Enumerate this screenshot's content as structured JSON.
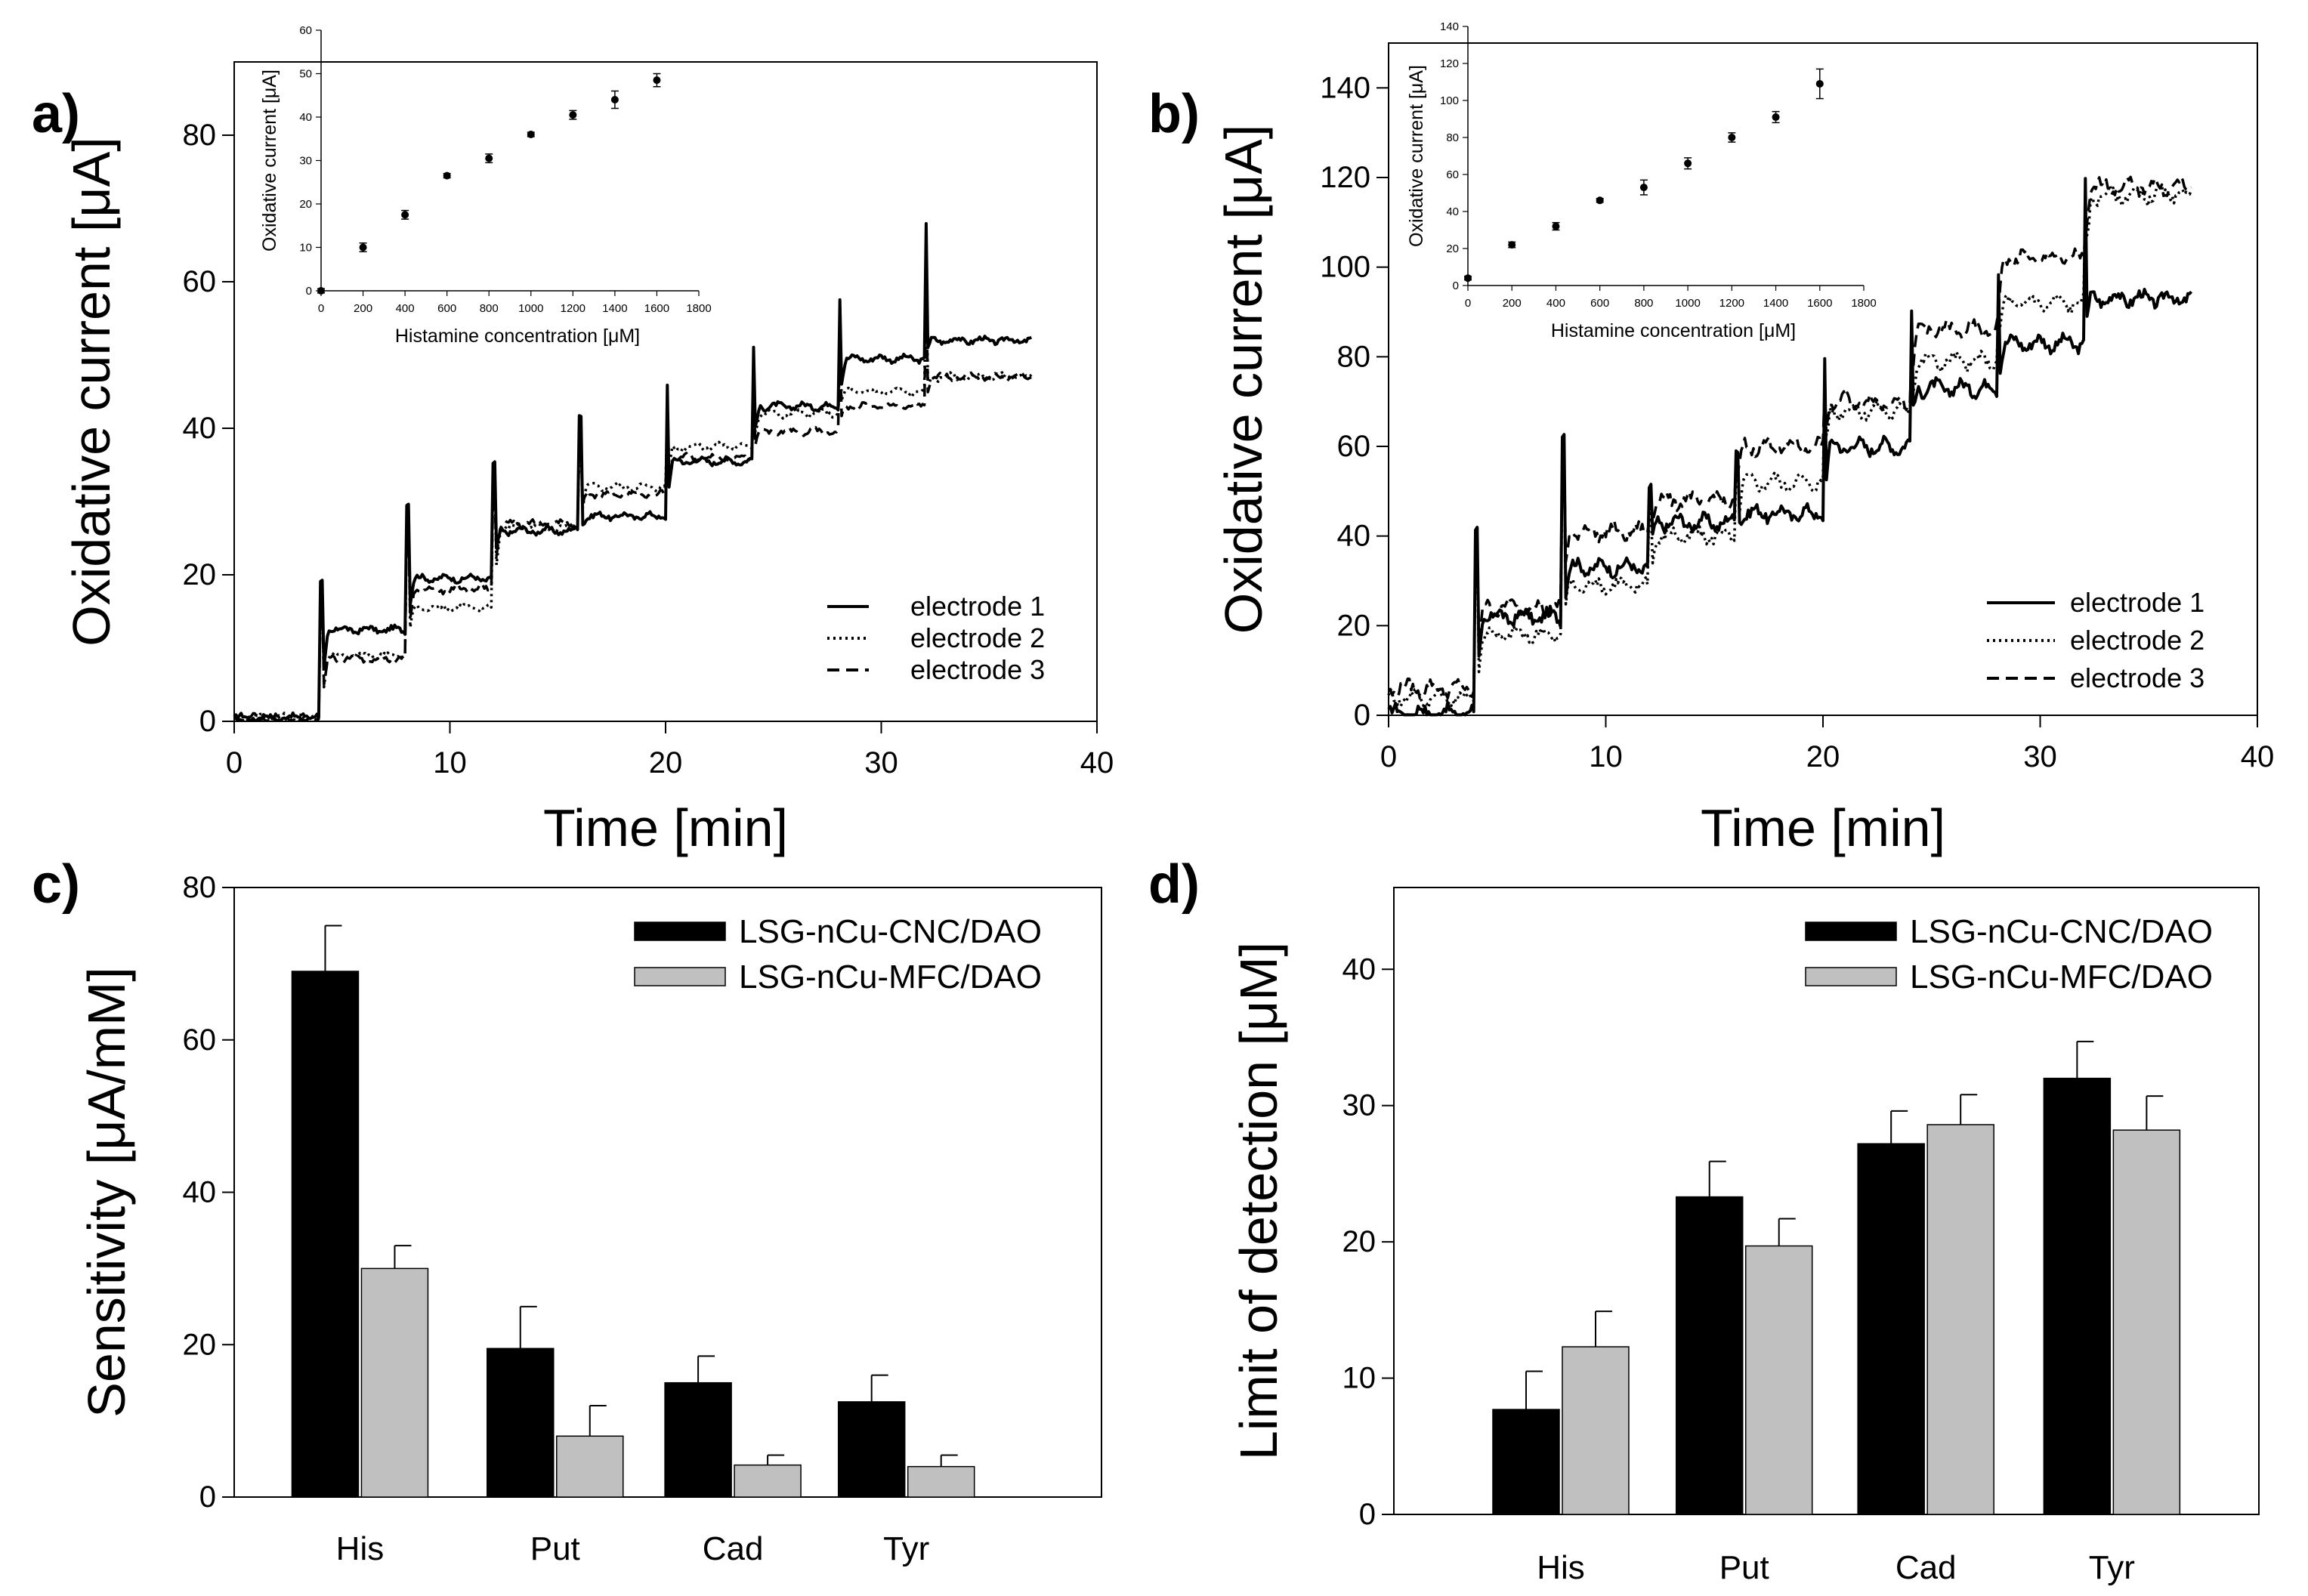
{
  "colors": {
    "ink": "#000000",
    "cnc": "#000000",
    "mfc": "#c0c0c0",
    "background": "#ffffff"
  },
  "chart_data": [
    {
      "id": "a",
      "panel_label": "a)",
      "type": "line",
      "title": "",
      "xlabel": "Time [min]",
      "ylabel": "Oxidative current [μA]",
      "xlim": [
        0,
        40
      ],
      "ylim": [
        0,
        90
      ],
      "xticks": [
        0,
        10,
        20,
        30,
        40
      ],
      "yticks": [
        0,
        20,
        40,
        60,
        80
      ],
      "legend": "bottom-right",
      "step_times": [
        4,
        8,
        12,
        16,
        20,
        24,
        28,
        32
      ],
      "spike_peaks": [
        19,
        30,
        35,
        42,
        46,
        51,
        58,
        68
      ],
      "series": [
        {
          "name": "electrode 1",
          "style": "solid",
          "levels": [
            0.5,
            12.5,
            19.5,
            26,
            28,
            35.5,
            43,
            49.5,
            52
          ]
        },
        {
          "name": "electrode 2",
          "style": "dotted",
          "levels": [
            0.5,
            9,
            15.5,
            26.5,
            32,
            37.5,
            42,
            45,
            47
          ]
        },
        {
          "name": "electrode 3",
          "style": "dashed",
          "levels": [
            0.5,
            8.5,
            18,
            27,
            31,
            36,
            39.5,
            43,
            47
          ]
        }
      ],
      "inset": {
        "type": "scatter",
        "xlabel": "Histamine concentration [μM]",
        "ylabel": "Oxidative current [μA]",
        "xlim": [
          0,
          1800
        ],
        "ylim": [
          0,
          60
        ],
        "xticks": [
          0,
          200,
          400,
          600,
          800,
          1000,
          1200,
          1400,
          1600,
          1800
        ],
        "yticks": [
          0,
          10,
          20,
          30,
          40,
          50,
          60
        ],
        "x": [
          0,
          200,
          400,
          600,
          800,
          1000,
          1200,
          1400,
          1600
        ],
        "y": [
          0,
          10,
          17.5,
          26.5,
          30.5,
          36,
          40.5,
          44,
          48.5
        ],
        "err": [
          0.5,
          1,
          1,
          0.5,
          1,
          0.5,
          1,
          2,
          1.5
        ]
      }
    },
    {
      "id": "b",
      "panel_label": "b)",
      "type": "line",
      "title": "",
      "xlabel": "Time [min]",
      "ylabel": "Oxidative current [μA]",
      "xlim": [
        0,
        40
      ],
      "ylim": [
        0,
        150
      ],
      "xticks": [
        0,
        10,
        20,
        30,
        40
      ],
      "yticks": [
        0,
        20,
        40,
        60,
        80,
        100,
        120,
        140
      ],
      "legend": "bottom-right",
      "step_times": [
        4,
        8,
        12,
        16,
        20,
        24,
        28,
        32
      ],
      "spike_peaks": [
        41,
        64,
        50,
        60,
        80,
        90,
        100,
        120
      ],
      "series": [
        {
          "name": "electrode 1",
          "style": "solid",
          "levels": [
            0.5,
            22,
            33,
            43,
            45,
            60,
            73,
            83,
            93
          ]
        },
        {
          "name": "electrode 2",
          "style": "dotted",
          "levels": [
            4,
            18,
            29,
            40,
            52,
            68,
            79,
            92,
            116
          ]
        },
        {
          "name": "electrode 3",
          "style": "dashed",
          "levels": [
            6,
            24,
            41,
            48,
            60,
            70,
            86,
            102,
            118
          ]
        }
      ],
      "inset": {
        "type": "scatter",
        "xlabel": "Histamine concentration [μM]",
        "ylabel": "Oxidative current [μA]",
        "xlim": [
          0,
          1800
        ],
        "ylim": [
          0,
          140
        ],
        "xticks": [
          0,
          200,
          400,
          600,
          800,
          1000,
          1200,
          1400,
          1600,
          1800
        ],
        "yticks": [
          0,
          20,
          40,
          60,
          80,
          100,
          120,
          140
        ],
        "x": [
          0,
          200,
          400,
          600,
          800,
          1000,
          1200,
          1400,
          1600
        ],
        "y": [
          4,
          22,
          32,
          46,
          53,
          66,
          80,
          91,
          109
        ],
        "err": [
          1,
          1.5,
          2,
          1,
          4,
          3,
          2.5,
          3,
          8
        ]
      }
    },
    {
      "id": "c",
      "panel_label": "c)",
      "type": "bar",
      "title": "",
      "xlabel": "",
      "ylabel": "Sensitivity [μA/mM]",
      "ylim": [
        0,
        80
      ],
      "yticks": [
        0,
        20,
        40,
        60,
        80
      ],
      "legend": "top-right",
      "categories": [
        "His",
        "Put",
        "Cad",
        "Tyr"
      ],
      "series": [
        {
          "name": "LSG-nCu-CNC/DAO",
          "values": [
            69,
            19.5,
            15,
            12.5
          ],
          "errors": [
            6,
            5.5,
            3.5,
            3.5
          ]
        },
        {
          "name": "LSG-nCu-MFC/DAO",
          "values": [
            30,
            8,
            4.2,
            4
          ],
          "errors": [
            3,
            4,
            1.3,
            1.5
          ]
        }
      ]
    },
    {
      "id": "d",
      "panel_label": "d)",
      "type": "bar",
      "title": "",
      "xlabel": "",
      "ylabel": "Limit of detection [μM]",
      "ylim": [
        0,
        46
      ],
      "yticks": [
        0,
        10,
        20,
        30,
        40
      ],
      "legend": "top-right",
      "categories": [
        "His",
        "Put",
        "Cad",
        "Tyr"
      ],
      "series": [
        {
          "name": "LSG-nCu-CNC/DAO",
          "values": [
            7.7,
            23.3,
            27.2,
            32
          ],
          "errors": [
            2.8,
            2.6,
            2.4,
            2.7
          ]
        },
        {
          "name": "LSG-nCu-MFC/DAO",
          "values": [
            12.3,
            19.7,
            28.6,
            28.2
          ],
          "errors": [
            2.6,
            2,
            2.2,
            2.5
          ]
        }
      ]
    }
  ]
}
